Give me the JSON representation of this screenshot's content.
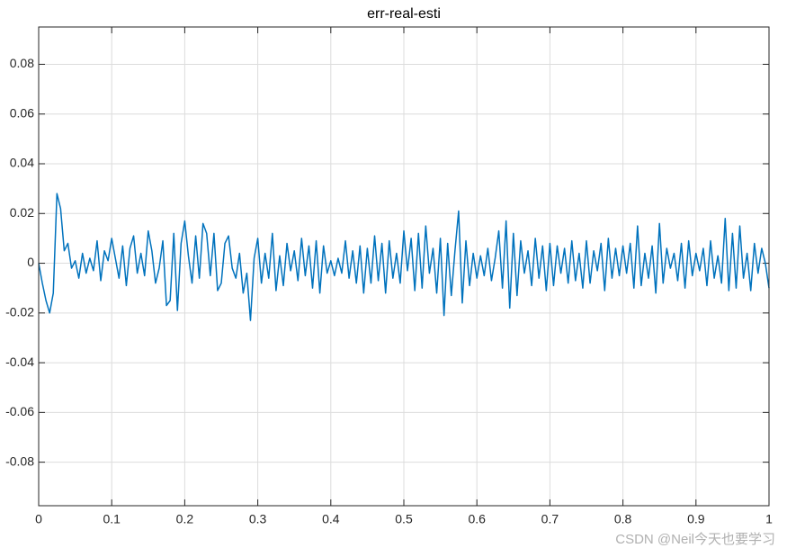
{
  "chart_data": {
    "type": "line",
    "title": "err-real-esti",
    "annotation": "CSDN @Neil今天也要学习",
    "xlim": [
      0,
      1
    ],
    "ylim": [
      -0.0975,
      0.095
    ],
    "xticks": [
      0,
      0.1,
      0.2,
      0.3,
      0.4,
      0.5,
      0.6,
      0.7,
      0.8,
      0.9,
      1
    ],
    "yticks": [
      -0.08,
      -0.06,
      -0.04,
      -0.02,
      0,
      0.02,
      0.04,
      0.06,
      0.08
    ],
    "grid": true,
    "x": [
      0,
      0.005,
      0.01,
      0.015,
      0.02,
      0.025,
      0.03,
      0.035,
      0.04,
      0.045,
      0.05,
      0.055,
      0.06,
      0.065,
      0.07,
      0.075,
      0.08,
      0.085,
      0.09,
      0.095,
      0.1,
      0.105,
      0.11,
      0.115,
      0.12,
      0.125,
      0.13,
      0.135,
      0.14,
      0.145,
      0.15,
      0.155,
      0.16,
      0.165,
      0.17,
      0.175,
      0.18,
      0.185,
      0.19,
      0.195,
      0.2,
      0.205,
      0.21,
      0.215,
      0.22,
      0.225,
      0.23,
      0.235,
      0.24,
      0.245,
      0.25,
      0.255,
      0.26,
      0.265,
      0.27,
      0.275,
      0.28,
      0.285,
      0.29,
      0.295,
      0.3,
      0.305,
      0.31,
      0.315,
      0.32,
      0.325,
      0.33,
      0.335,
      0.34,
      0.345,
      0.35,
      0.355,
      0.36,
      0.365,
      0.37,
      0.375,
      0.38,
      0.385,
      0.39,
      0.395,
      0.4,
      0.405,
      0.41,
      0.415,
      0.42,
      0.425,
      0.43,
      0.435,
      0.44,
      0.445,
      0.45,
      0.455,
      0.46,
      0.465,
      0.47,
      0.475,
      0.48,
      0.485,
      0.49,
      0.495,
      0.5,
      0.505,
      0.51,
      0.515,
      0.52,
      0.525,
      0.53,
      0.535,
      0.54,
      0.545,
      0.55,
      0.555,
      0.56,
      0.565,
      0.57,
      0.575,
      0.58,
      0.585,
      0.59,
      0.595,
      0.6,
      0.605,
      0.61,
      0.615,
      0.62,
      0.625,
      0.63,
      0.635,
      0.64,
      0.645,
      0.65,
      0.655,
      0.66,
      0.665,
      0.67,
      0.675,
      0.68,
      0.685,
      0.69,
      0.695,
      0.7,
      0.705,
      0.71,
      0.715,
      0.72,
      0.725,
      0.73,
      0.735,
      0.74,
      0.745,
      0.75,
      0.755,
      0.76,
      0.765,
      0.77,
      0.775,
      0.78,
      0.785,
      0.79,
      0.795,
      0.8,
      0.805,
      0.81,
      0.815,
      0.82,
      0.825,
      0.83,
      0.835,
      0.84,
      0.845,
      0.85,
      0.855,
      0.86,
      0.865,
      0.87,
      0.875,
      0.88,
      0.885,
      0.89,
      0.895,
      0.9,
      0.905,
      0.91,
      0.915,
      0.92,
      0.925,
      0.93,
      0.935,
      0.94,
      0.945,
      0.95,
      0.955,
      0.96,
      0.965,
      0.97,
      0.975,
      0.98,
      0.985,
      0.99,
      0.995,
      1
    ],
    "series": [
      {
        "color": "#0072bd",
        "values": [
          0,
          -0.008,
          -0.015,
          -0.02,
          -0.012,
          0.028,
          0.022,
          0.005,
          0.008,
          -0.002,
          0.001,
          -0.006,
          0.004,
          -0.004,
          0.002,
          -0.003,
          0.009,
          -0.007,
          0.005,
          0.001,
          0.01,
          0.002,
          -0.006,
          0.007,
          -0.009,
          0.006,
          0.011,
          -0.004,
          0.004,
          -0.005,
          0.013,
          0.005,
          -0.008,
          -0.002,
          0.009,
          -0.017,
          -0.015,
          0.012,
          -0.019,
          0.008,
          0.017,
          0.003,
          -0.008,
          0.011,
          -0.006,
          0.016,
          0.012,
          -0.005,
          0.012,
          -0.011,
          -0.008,
          0.008,
          0.011,
          -0.002,
          -0.006,
          0.004,
          -0.012,
          -0.004,
          -0.023,
          0.002,
          0.01,
          -0.008,
          0.004,
          -0.006,
          0.012,
          -0.011,
          0.003,
          -0.009,
          0.008,
          -0.003,
          0.005,
          -0.007,
          0.01,
          -0.005,
          0.007,
          -0.01,
          0.009,
          -0.012,
          0.007,
          -0.004,
          0.001,
          -0.005,
          0.002,
          -0.004,
          0.009,
          -0.006,
          0.005,
          -0.008,
          0.007,
          -0.012,
          0.006,
          -0.008,
          0.011,
          -0.007,
          0.008,
          -0.012,
          0.009,
          -0.006,
          0.004,
          -0.008,
          0.013,
          -0.003,
          0.01,
          -0.011,
          0.012,
          -0.01,
          0.015,
          -0.004,
          0.006,
          -0.012,
          0.01,
          -0.021,
          0.008,
          -0.013,
          0.005,
          0.021,
          -0.016,
          0.009,
          -0.009,
          0.004,
          -0.006,
          0.003,
          -0.005,
          0.006,
          -0.007,
          0.002,
          0.013,
          -0.01,
          0.017,
          -0.018,
          0.012,
          -0.013,
          0.009,
          -0.004,
          0.005,
          -0.009,
          0.01,
          -0.006,
          0.007,
          -0.011,
          0.008,
          -0.009,
          0.007,
          -0.004,
          0.006,
          -0.008,
          0.009,
          -0.007,
          0.004,
          -0.01,
          0.009,
          -0.008,
          0.005,
          -0.003,
          0.008,
          -0.011,
          0.01,
          -0.006,
          0.006,
          -0.005,
          0.007,
          -0.004,
          0.008,
          -0.01,
          0.015,
          -0.009,
          0.004,
          -0.006,
          0.007,
          -0.012,
          0.016,
          -0.008,
          0.006,
          -0.002,
          0.004,
          -0.007,
          0.008,
          -0.01,
          0.009,
          -0.005,
          0.004,
          -0.003,
          0.006,
          -0.009,
          0.009,
          -0.006,
          0.003,
          -0.008,
          0.018,
          -0.011,
          0.012,
          -0.01,
          0.015,
          -0.006,
          0.004,
          -0.011,
          0.008,
          -0.004,
          0.006,
          0,
          -0.01
        ]
      }
    ]
  }
}
